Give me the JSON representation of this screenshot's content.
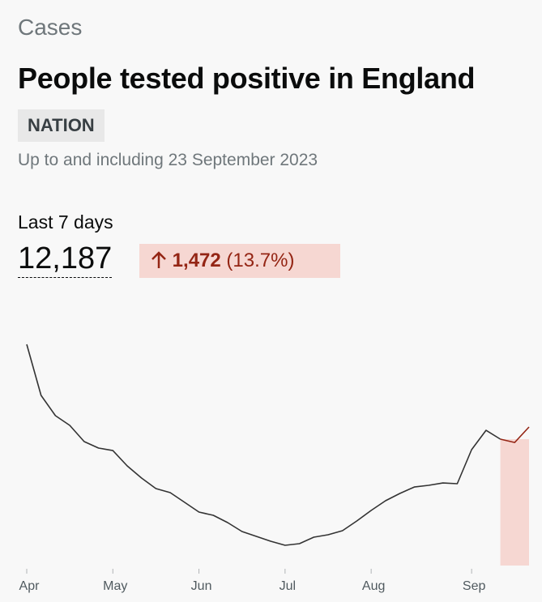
{
  "header": {
    "section": "Cases",
    "title": "People tested positive in England",
    "tag": "NATION",
    "subtitle": "Up to and including 23 September 2023"
  },
  "summary": {
    "label": "Last 7 days",
    "value": "12,187",
    "change": "1,472",
    "change_percent": "(13.7%)"
  },
  "chart_data": {
    "type": "line",
    "color": "#333333",
    "highlight_color": "#942514",
    "categories": [
      "Apr",
      null,
      null,
      null,
      null,
      null,
      "May",
      null,
      null,
      null,
      null,
      null,
      "Jun",
      null,
      null,
      null,
      null,
      null,
      "Jul",
      null,
      null,
      null,
      null,
      null,
      "Aug",
      null,
      null,
      null,
      null,
      null,
      null,
      "Sep",
      null,
      null,
      null,
      null
    ],
    "values": [
      2785,
      2142,
      1887,
      1765,
      1561,
      1479,
      1448,
      1255,
      1102,
      969,
      918,
      796,
      673,
      632,
      541,
      428,
      367,
      306,
      255,
      275,
      357,
      388,
      439,
      561,
      694,
      816,
      908,
      989,
      1010,
      1040,
      1030,
      1459,
      1703,
      1591,
      1550,
      1744
    ]
  }
}
